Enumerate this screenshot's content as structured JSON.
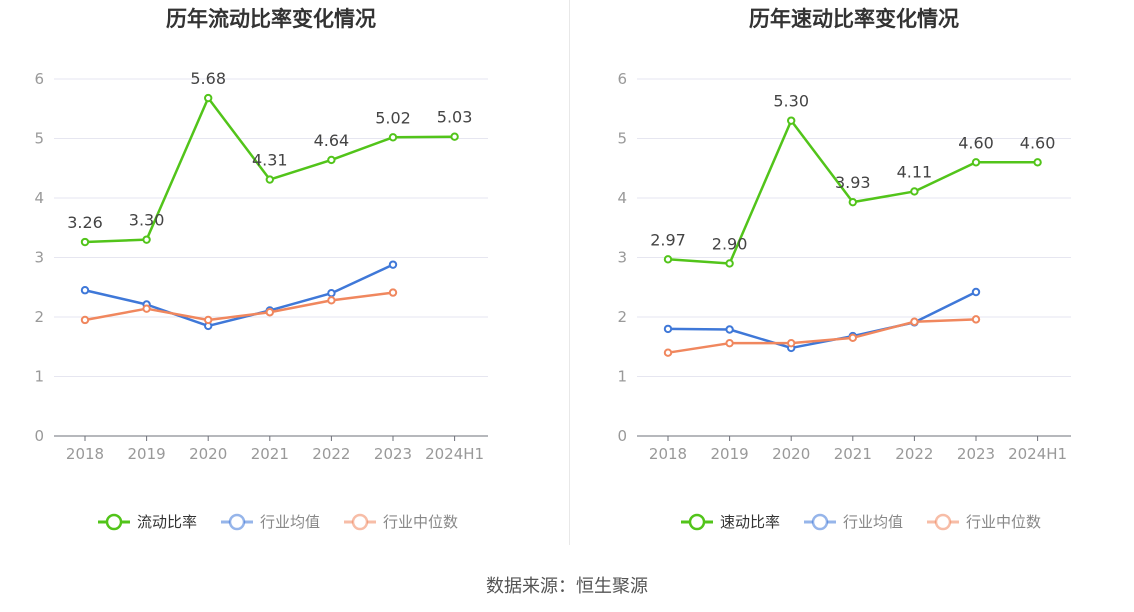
{
  "source": "数据来源：恒生聚源",
  "colors": {
    "main": "#52c41a",
    "avg": "#3f78d8",
    "median": "#f0875e",
    "axis": "#999999",
    "grid": "#e6e6f0",
    "label": "#444444"
  },
  "chart_data": [
    {
      "type": "line",
      "title": "历年流动比率变化情况",
      "categories": [
        "2018",
        "2019",
        "2020",
        "2021",
        "2022",
        "2023",
        "2024H1"
      ],
      "ylim": [
        0,
        6
      ],
      "yticks": [
        0,
        1,
        2,
        3,
        4,
        5,
        6
      ],
      "series": [
        {
          "name": "流动比率",
          "key": "main",
          "values": [
            3.26,
            3.3,
            5.68,
            4.31,
            4.64,
            5.02,
            5.03
          ],
          "labels": [
            "3.26",
            "3.30",
            "5.68",
            "4.31",
            "4.64",
            "5.02",
            "5.03"
          ]
        },
        {
          "name": "行业均值",
          "key": "avg",
          "values": [
            2.45,
            2.21,
            1.85,
            2.11,
            2.4,
            2.88,
            null
          ]
        },
        {
          "name": "行业中位数",
          "key": "median",
          "values": [
            1.95,
            2.14,
            1.95,
            2.08,
            2.28,
            2.41,
            null
          ]
        }
      ]
    },
    {
      "type": "line",
      "title": "历年速动比率变化情况",
      "categories": [
        "2018",
        "2019",
        "2020",
        "2021",
        "2022",
        "2023",
        "2024H1"
      ],
      "ylim": [
        0,
        6
      ],
      "yticks": [
        0,
        1,
        2,
        3,
        4,
        5,
        6
      ],
      "series": [
        {
          "name": "速动比率",
          "key": "main",
          "values": [
            2.97,
            2.9,
            5.3,
            3.93,
            4.11,
            4.6,
            4.6
          ],
          "labels": [
            "2.97",
            "2.90",
            "5.30",
            "3.93",
            "4.11",
            "4.60",
            "4.60"
          ]
        },
        {
          "name": "行业均值",
          "key": "avg",
          "values": [
            1.8,
            1.79,
            1.48,
            1.68,
            1.91,
            2.42,
            null
          ]
        },
        {
          "name": "行业中位数",
          "key": "median",
          "values": [
            1.4,
            1.56,
            1.56,
            1.65,
            1.92,
            1.96,
            null
          ]
        }
      ]
    }
  ]
}
